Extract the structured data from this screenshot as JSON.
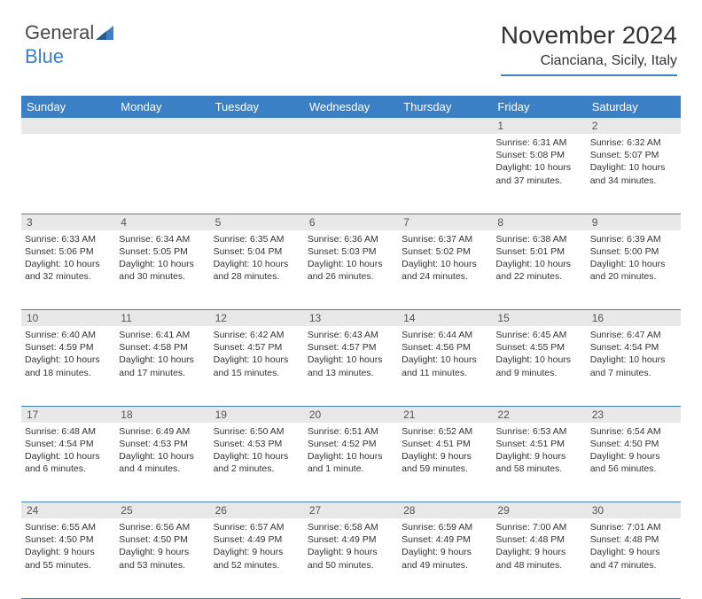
{
  "brand": {
    "part1": "General",
    "part2": "Blue"
  },
  "title": "November 2024",
  "location": "Cianciana, Sicily, Italy",
  "colors": {
    "accent": "#3b7fc4",
    "daynum_bg": "#e8e8e8",
    "text": "#333333"
  },
  "day_headers": [
    "Sunday",
    "Monday",
    "Tuesday",
    "Wednesday",
    "Thursday",
    "Friday",
    "Saturday"
  ],
  "weeks": [
    {
      "nums": [
        "",
        "",
        "",
        "",
        "",
        "1",
        "2"
      ],
      "cells": [
        null,
        null,
        null,
        null,
        null,
        {
          "sunrise": "Sunrise: 6:31 AM",
          "sunset": "Sunset: 5:08 PM",
          "day": "Daylight: 10 hours and 37 minutes."
        },
        {
          "sunrise": "Sunrise: 6:32 AM",
          "sunset": "Sunset: 5:07 PM",
          "day": "Daylight: 10 hours and 34 minutes."
        }
      ]
    },
    {
      "nums": [
        "3",
        "4",
        "5",
        "6",
        "7",
        "8",
        "9"
      ],
      "cells": [
        {
          "sunrise": "Sunrise: 6:33 AM",
          "sunset": "Sunset: 5:06 PM",
          "day": "Daylight: 10 hours and 32 minutes."
        },
        {
          "sunrise": "Sunrise: 6:34 AM",
          "sunset": "Sunset: 5:05 PM",
          "day": "Daylight: 10 hours and 30 minutes."
        },
        {
          "sunrise": "Sunrise: 6:35 AM",
          "sunset": "Sunset: 5:04 PM",
          "day": "Daylight: 10 hours and 28 minutes."
        },
        {
          "sunrise": "Sunrise: 6:36 AM",
          "sunset": "Sunset: 5:03 PM",
          "day": "Daylight: 10 hours and 26 minutes."
        },
        {
          "sunrise": "Sunrise: 6:37 AM",
          "sunset": "Sunset: 5:02 PM",
          "day": "Daylight: 10 hours and 24 minutes."
        },
        {
          "sunrise": "Sunrise: 6:38 AM",
          "sunset": "Sunset: 5:01 PM",
          "day": "Daylight: 10 hours and 22 minutes."
        },
        {
          "sunrise": "Sunrise: 6:39 AM",
          "sunset": "Sunset: 5:00 PM",
          "day": "Daylight: 10 hours and 20 minutes."
        }
      ]
    },
    {
      "nums": [
        "10",
        "11",
        "12",
        "13",
        "14",
        "15",
        "16"
      ],
      "cells": [
        {
          "sunrise": "Sunrise: 6:40 AM",
          "sunset": "Sunset: 4:59 PM",
          "day": "Daylight: 10 hours and 18 minutes."
        },
        {
          "sunrise": "Sunrise: 6:41 AM",
          "sunset": "Sunset: 4:58 PM",
          "day": "Daylight: 10 hours and 17 minutes."
        },
        {
          "sunrise": "Sunrise: 6:42 AM",
          "sunset": "Sunset: 4:57 PM",
          "day": "Daylight: 10 hours and 15 minutes."
        },
        {
          "sunrise": "Sunrise: 6:43 AM",
          "sunset": "Sunset: 4:57 PM",
          "day": "Daylight: 10 hours and 13 minutes."
        },
        {
          "sunrise": "Sunrise: 6:44 AM",
          "sunset": "Sunset: 4:56 PM",
          "day": "Daylight: 10 hours and 11 minutes."
        },
        {
          "sunrise": "Sunrise: 6:45 AM",
          "sunset": "Sunset: 4:55 PM",
          "day": "Daylight: 10 hours and 9 minutes."
        },
        {
          "sunrise": "Sunrise: 6:47 AM",
          "sunset": "Sunset: 4:54 PM",
          "day": "Daylight: 10 hours and 7 minutes."
        }
      ]
    },
    {
      "nums": [
        "17",
        "18",
        "19",
        "20",
        "21",
        "22",
        "23"
      ],
      "cells": [
        {
          "sunrise": "Sunrise: 6:48 AM",
          "sunset": "Sunset: 4:54 PM",
          "day": "Daylight: 10 hours and 6 minutes."
        },
        {
          "sunrise": "Sunrise: 6:49 AM",
          "sunset": "Sunset: 4:53 PM",
          "day": "Daylight: 10 hours and 4 minutes."
        },
        {
          "sunrise": "Sunrise: 6:50 AM",
          "sunset": "Sunset: 4:53 PM",
          "day": "Daylight: 10 hours and 2 minutes."
        },
        {
          "sunrise": "Sunrise: 6:51 AM",
          "sunset": "Sunset: 4:52 PM",
          "day": "Daylight: 10 hours and 1 minute."
        },
        {
          "sunrise": "Sunrise: 6:52 AM",
          "sunset": "Sunset: 4:51 PM",
          "day": "Daylight: 9 hours and 59 minutes."
        },
        {
          "sunrise": "Sunrise: 6:53 AM",
          "sunset": "Sunset: 4:51 PM",
          "day": "Daylight: 9 hours and 58 minutes."
        },
        {
          "sunrise": "Sunrise: 6:54 AM",
          "sunset": "Sunset: 4:50 PM",
          "day": "Daylight: 9 hours and 56 minutes."
        }
      ]
    },
    {
      "nums": [
        "24",
        "25",
        "26",
        "27",
        "28",
        "29",
        "30"
      ],
      "cells": [
        {
          "sunrise": "Sunrise: 6:55 AM",
          "sunset": "Sunset: 4:50 PM",
          "day": "Daylight: 9 hours and 55 minutes."
        },
        {
          "sunrise": "Sunrise: 6:56 AM",
          "sunset": "Sunset: 4:50 PM",
          "day": "Daylight: 9 hours and 53 minutes."
        },
        {
          "sunrise": "Sunrise: 6:57 AM",
          "sunset": "Sunset: 4:49 PM",
          "day": "Daylight: 9 hours and 52 minutes."
        },
        {
          "sunrise": "Sunrise: 6:58 AM",
          "sunset": "Sunset: 4:49 PM",
          "day": "Daylight: 9 hours and 50 minutes."
        },
        {
          "sunrise": "Sunrise: 6:59 AM",
          "sunset": "Sunset: 4:49 PM",
          "day": "Daylight: 9 hours and 49 minutes."
        },
        {
          "sunrise": "Sunrise: 7:00 AM",
          "sunset": "Sunset: 4:48 PM",
          "day": "Daylight: 9 hours and 48 minutes."
        },
        {
          "sunrise": "Sunrise: 7:01 AM",
          "sunset": "Sunset: 4:48 PM",
          "day": "Daylight: 9 hours and 47 minutes."
        }
      ]
    }
  ]
}
